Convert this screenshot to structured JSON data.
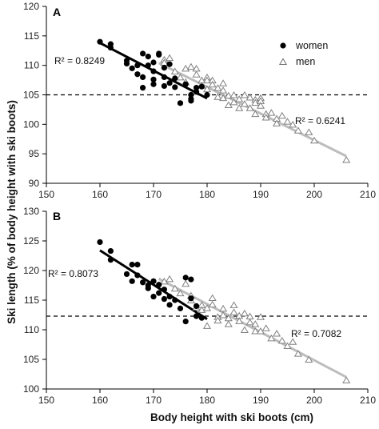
{
  "chart_data": [
    {
      "panel": "A",
      "type": "scatter",
      "xlabel": "Body height with ski boots (cm)",
      "ylabel": "Ski length (% of body height with ski boots)",
      "xlim": [
        150,
        210
      ],
      "ylim": [
        90,
        120
      ],
      "xticks": [
        150,
        160,
        170,
        180,
        190,
        200,
        210
      ],
      "yticks": [
        90,
        95,
        100,
        105,
        110,
        115,
        120
      ],
      "reference_line_y": 105,
      "legend": {
        "placement": "top-right",
        "entries": [
          "women",
          "men"
        ]
      },
      "series": [
        {
          "name": "women",
          "marker": "filled-circle",
          "color": "#000000",
          "points": [
            [
              160,
              114
            ],
            [
              162,
              113.6
            ],
            [
              162,
              113
            ],
            [
              165,
              110.8
            ],
            [
              165,
              110.3
            ],
            [
              166,
              109.5
            ],
            [
              167,
              110
            ],
            [
              167,
              108.5
            ],
            [
              168,
              112
            ],
            [
              168,
              108
            ],
            [
              168,
              106.2
            ],
            [
              169,
              111.5
            ],
            [
              169,
              110
            ],
            [
              170,
              110.5
            ],
            [
              170,
              109
            ],
            [
              170,
              107.6
            ],
            [
              170,
              106.8
            ],
            [
              171,
              111.8
            ],
            [
              171,
              112
            ],
            [
              172,
              109.6
            ],
            [
              172,
              108
            ],
            [
              172,
              106.5
            ],
            [
              173,
              110.2
            ],
            [
              173,
              107
            ],
            [
              174,
              107.8
            ],
            [
              174,
              106.3
            ],
            [
              175,
              103.6
            ],
            [
              176,
              106.8
            ],
            [
              177,
              105
            ],
            [
              177,
              104.3
            ],
            [
              177,
              104
            ],
            [
              178,
              106.2
            ],
            [
              178,
              105.5
            ],
            [
              179,
              106.4
            ],
            [
              180,
              105
            ]
          ],
          "r2_label": "R² = 0.8249",
          "trend": {
            "x1": 160,
            "y1": 113.8,
            "x2": 180,
            "y2": 104.4,
            "color": "#000000"
          }
        },
        {
          "name": "men",
          "marker": "open-triangle",
          "color": "#808080",
          "points": [
            [
              172,
              111
            ],
            [
              172,
              110.5
            ],
            [
              173,
              111.3
            ],
            [
              174,
              109
            ],
            [
              175,
              108
            ],
            [
              176,
              109.5
            ],
            [
              176,
              107.2
            ],
            [
              177,
              109.8
            ],
            [
              178,
              109.5
            ],
            [
              178,
              108.5
            ],
            [
              179,
              107.5
            ],
            [
              179,
              106.6
            ],
            [
              180,
              108
            ],
            [
              180,
              107.5
            ],
            [
              180,
              106
            ],
            [
              181,
              107.5
            ],
            [
              181,
              106.8
            ],
            [
              182,
              106.2
            ],
            [
              182,
              104.7
            ],
            [
              183,
              107
            ],
            [
              183,
              105.8
            ],
            [
              183,
              104.5
            ],
            [
              184,
              104.9
            ],
            [
              184,
              103.3
            ],
            [
              185,
              105
            ],
            [
              185,
              103.8
            ],
            [
              186,
              104.3
            ],
            [
              186,
              102.8
            ],
            [
              187,
              105
            ],
            [
              187,
              103.5
            ],
            [
              188,
              104.6
            ],
            [
              188,
              102.8
            ],
            [
              189,
              104.2
            ],
            [
              189,
              103.7
            ],
            [
              189,
              101.8
            ],
            [
              190,
              104.5
            ],
            [
              190,
              104
            ],
            [
              190,
              103.2
            ],
            [
              191,
              101.8
            ],
            [
              191,
              101.2
            ],
            [
              192,
              102
            ],
            [
              193,
              101
            ],
            [
              193,
              100.2
            ],
            [
              194,
              101.5
            ],
            [
              195,
              100.5
            ],
            [
              196,
              100
            ],
            [
              197,
              99
            ],
            [
              199,
              98.7
            ],
            [
              200,
              97.3
            ],
            [
              206,
              94
            ]
          ],
          "r2_label": "R² = 0.6241",
          "trend": {
            "x1": 171,
            "y1": 110.4,
            "x2": 206,
            "y2": 94.6,
            "color": "#bdbdbd"
          }
        }
      ]
    },
    {
      "panel": "B",
      "type": "scatter",
      "xlabel": "Body height with ski boots (cm)",
      "ylabel": "Ski length (% of body height with ski boots)",
      "xlim": [
        150,
        210
      ],
      "ylim": [
        100,
        130
      ],
      "xticks": [
        150,
        160,
        170,
        180,
        190,
        200,
        210
      ],
      "yticks": [
        100,
        105,
        110,
        115,
        120,
        125,
        130
      ],
      "reference_line_y": 112.3,
      "series": [
        {
          "name": "women",
          "marker": "filled-circle",
          "color": "#000000",
          "points": [
            [
              160,
              124.8
            ],
            [
              162,
              123.3
            ],
            [
              162,
              121.8
            ],
            [
              165,
              119.4
            ],
            [
              166,
              121
            ],
            [
              166,
              118.2
            ],
            [
              167,
              121
            ],
            [
              167,
              119.2
            ],
            [
              168,
              118
            ],
            [
              169,
              117.5
            ],
            [
              169,
              117
            ],
            [
              170,
              118.2
            ],
            [
              170,
              115.6
            ],
            [
              171,
              117.6
            ],
            [
              171,
              116.2
            ],
            [
              172,
              116.8
            ],
            [
              172,
              115.2
            ],
            [
              173,
              115.6
            ],
            [
              173,
              114.2
            ],
            [
              174,
              115
            ],
            [
              175,
              113.6
            ],
            [
              176,
              118.8
            ],
            [
              176,
              111.4
            ],
            [
              177,
              118.5
            ],
            [
              177,
              115.3
            ],
            [
              178,
              114
            ],
            [
              178,
              112.3
            ],
            [
              179,
              112
            ]
          ],
          "r2_label": "R² = 0.8073",
          "trend": {
            "x1": 160,
            "y1": 123.4,
            "x2": 180,
            "y2": 111.8,
            "color": "#000000"
          }
        },
        {
          "name": "men",
          "marker": "open-triangle",
          "color": "#808080",
          "points": [
            [
              172,
              118.2
            ],
            [
              173,
              118.6
            ],
            [
              174,
              117
            ],
            [
              175,
              116.2
            ],
            [
              176,
              117.8
            ],
            [
              177,
              115.8
            ],
            [
              177,
              115
            ],
            [
              178,
              113.8
            ],
            [
              179,
              114.2
            ],
            [
              179,
              113.4
            ],
            [
              180,
              113.7
            ],
            [
              180,
              110.7
            ],
            [
              181,
              115.4
            ],
            [
              181,
              114.3
            ],
            [
              182,
              112.2
            ],
            [
              182,
              111.6
            ],
            [
              183,
              113.6
            ],
            [
              183,
              112.5
            ],
            [
              184,
              112
            ],
            [
              184,
              111
            ],
            [
              185,
              114.2
            ],
            [
              185,
              113
            ],
            [
              186,
              112.4
            ],
            [
              186,
              111.5
            ],
            [
              187,
              110
            ],
            [
              187,
              112.8
            ],
            [
              188,
              112.3
            ],
            [
              188,
              111.3
            ],
            [
              189,
              111
            ],
            [
              189,
              109.8
            ],
            [
              190,
              112.2
            ],
            [
              190,
              109.8
            ],
            [
              191,
              110.3
            ],
            [
              192,
              108.6
            ],
            [
              193,
              109.4
            ],
            [
              194,
              108.2
            ],
            [
              195,
              107.3
            ],
            [
              196,
              108
            ],
            [
              197,
              106
            ],
            [
              199,
              105
            ],
            [
              206,
              101.5
            ]
          ],
          "r2_label": "R² = 0.7082",
          "trend": {
            "x1": 171,
            "y1": 118.6,
            "x2": 206,
            "y2": 102,
            "color": "#bdbdbd"
          }
        }
      ]
    }
  ]
}
